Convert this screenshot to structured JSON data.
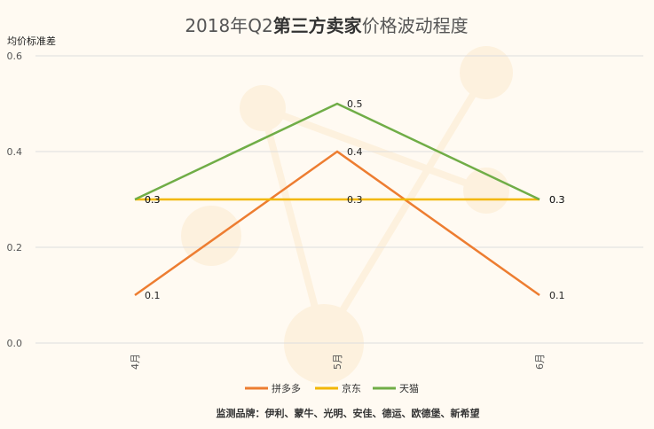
{
  "chart_data": {
    "type": "line",
    "title_prefix": "2018年Q2",
    "title_emphasis": "第三方卖家",
    "title_suffix": "价格波动程度",
    "ylabel": "均价标准差",
    "ylim": [
      0,
      0.6
    ],
    "yticks": [
      "0.0",
      "0.2",
      "0.4",
      "0.6"
    ],
    "categories": [
      "4月",
      "5月",
      "6月"
    ],
    "series": [
      {
        "name": "拼多多",
        "values": [
          0.1,
          0.4,
          0.1
        ],
        "color": "#ed7d31"
      },
      {
        "name": "京东",
        "values": [
          0.3,
          0.3,
          0.3
        ],
        "color": "#f2b705"
      },
      {
        "name": "天猫",
        "values": [
          0.3,
          0.5,
          0.3
        ],
        "color": "#70ad47"
      }
    ],
    "grid": true,
    "legend_position": "bottom",
    "note": "监测品牌：伊利、蒙牛、光明、安佳、德运、欧德堡、新希望"
  }
}
